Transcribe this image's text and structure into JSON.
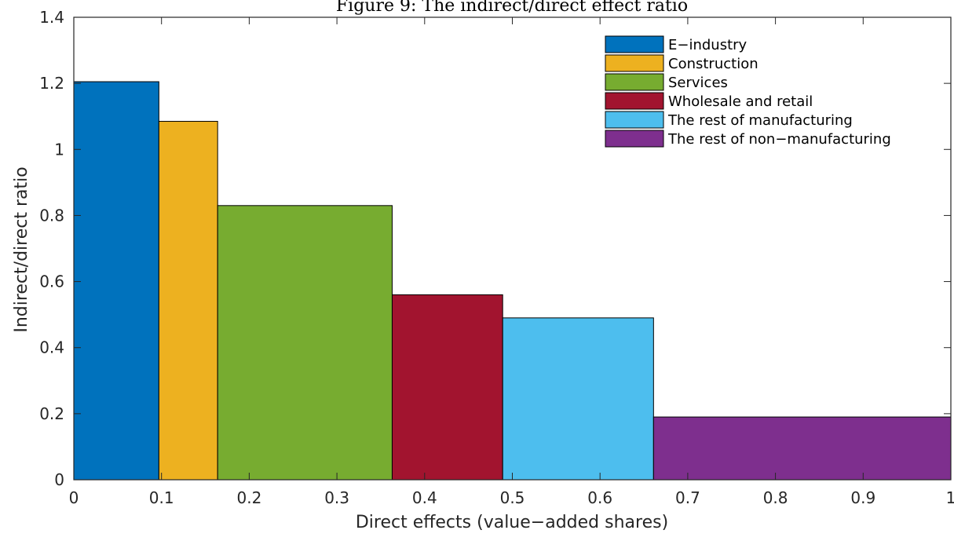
{
  "chart_data": {
    "type": "bar",
    "title": "Figure 9: The indirect/direct effect ratio",
    "xlabel": "Direct effects (value−added shares)",
    "ylabel": "Indirect/direct ratio",
    "xlim": [
      0,
      1
    ],
    "ylim": [
      0,
      1.4
    ],
    "xticks": [
      "0",
      "0.1",
      "0.2",
      "0.3",
      "0.4",
      "0.5",
      "0.6",
      "0.7",
      "0.8",
      "0.9",
      "1"
    ],
    "yticks": [
      "0",
      "0.2",
      "0.4",
      "0.6",
      "0.8",
      "1",
      "1.2",
      "1.4"
    ],
    "grid": false,
    "legend_position": "top-right",
    "series": [
      {
        "name": "E−industry",
        "x_start": 0.0,
        "x_end": 0.097,
        "value": 1.205,
        "color": "#0072BD"
      },
      {
        "name": "Construction",
        "x_start": 0.097,
        "x_end": 0.164,
        "value": 1.085,
        "color": "#EDB120"
      },
      {
        "name": "Services",
        "x_start": 0.164,
        "x_end": 0.363,
        "value": 0.83,
        "color": "#77AC30"
      },
      {
        "name": "Wholesale and retail",
        "x_start": 0.363,
        "x_end": 0.489,
        "value": 0.56,
        "color": "#A2142F"
      },
      {
        "name": "The rest of manufacturing",
        "x_start": 0.489,
        "x_end": 0.661,
        "value": 0.49,
        "color": "#4DBEEE"
      },
      {
        "name": "The rest of non−manufacturing",
        "x_start": 0.661,
        "x_end": 1.0,
        "value": 0.19,
        "color": "#7E2F8E"
      }
    ]
  }
}
